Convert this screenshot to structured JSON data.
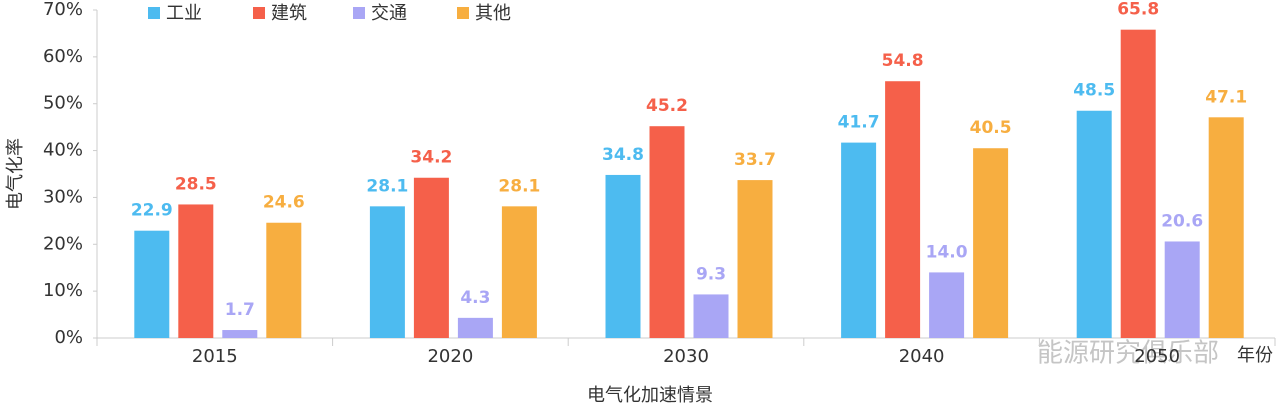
{
  "chart_data": {
    "type": "bar",
    "y_label": "电气化率",
    "x_label": "电气化加速情景",
    "x_unit": "年份",
    "watermark": "能源研究俱乐部",
    "categories": [
      "2015",
      "2020",
      "2030",
      "2040",
      "2050"
    ],
    "series": [
      {
        "name": "工业",
        "color": "#4dbbf0",
        "values": [
          22.9,
          28.1,
          34.8,
          41.7,
          48.5
        ],
        "value_labels": [
          "22.9",
          "28.1",
          "34.8",
          "41.7",
          "48.5"
        ]
      },
      {
        "name": "建筑",
        "color": "#f5604a",
        "values": [
          28.5,
          34.2,
          45.2,
          54.8,
          65.8
        ],
        "value_labels": [
          "28.5",
          "34.2",
          "45.2",
          "54.8",
          "65.8"
        ]
      },
      {
        "name": "交通",
        "color": "#a9a6f5",
        "values": [
          1.7,
          4.3,
          9.3,
          14.0,
          20.6
        ],
        "value_labels": [
          "1.7",
          "4.3",
          "9.3",
          "14.0",
          "20.6"
        ]
      },
      {
        "name": "其他",
        "color": "#f7ae40",
        "values": [
          24.6,
          28.1,
          33.7,
          40.5,
          47.1
        ],
        "value_labels": [
          "24.6",
          "28.1",
          "33.7",
          "40.5",
          "47.1"
        ]
      }
    ],
    "ylim": [
      0,
      70
    ],
    "yticks": [
      {
        "value": 0,
        "label": "0%"
      },
      {
        "value": 10,
        "label": "10%"
      },
      {
        "value": 20,
        "label": "20%"
      },
      {
        "value": 30,
        "label": "30%"
      },
      {
        "value": 40,
        "label": "40%"
      },
      {
        "value": 50,
        "label": "50%"
      },
      {
        "value": 60,
        "label": "60%"
      },
      {
        "value": 70,
        "label": "70%"
      }
    ],
    "legend": "top-left"
  }
}
